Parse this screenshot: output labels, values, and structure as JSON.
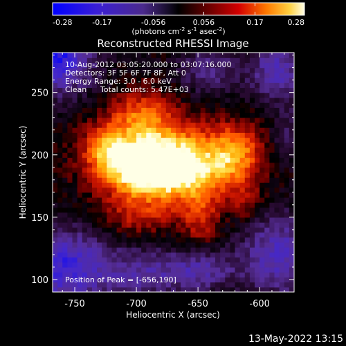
{
  "colorbar": {
    "ticks": [
      "-0.28",
      "-0.17",
      "-0.056",
      "0.056",
      "0.17",
      "0.28"
    ],
    "tick_values": [
      -0.28,
      -0.17,
      -0.056,
      0.056,
      0.17,
      0.28
    ],
    "range": [
      -0.28,
      0.28
    ],
    "unit_label": "(photons cm",
    "unit_sup1": "-2",
    "unit_mid1": " s",
    "unit_sup2": "-1",
    "unit_mid2": " asec",
    "unit_sup3": "-2",
    "unit_end": ")"
  },
  "title": "Reconstructed RHESSI Image",
  "annotations": {
    "time_range": "10-Aug-2012 03:05:20.000 to 03:07:16.000",
    "detectors": "Detectors: 3F 5F 6F 7F 8F, Att 0",
    "energy_range": "Energy Range: 3.0 - 6.0 keV",
    "algorithm": "Clean",
    "total_counts": "Total counts: 5.47E+03",
    "peak_position": "Position of Peak = [-656,190]"
  },
  "axes": {
    "xlabel": "Heliocentric X (arcsec)",
    "ylabel": "Heliocentric Y (arcsec)",
    "xticks": [
      "-750",
      "-700",
      "-650",
      "-600"
    ],
    "yticks": [
      "100",
      "150",
      "200",
      "250"
    ],
    "x_tick_values": [
      -750,
      -700,
      -650,
      -600
    ],
    "y_tick_values": [
      100,
      150,
      200,
      250
    ],
    "xlim": [
      -768,
      -572
    ],
    "ylim": [
      90,
      282
    ]
  },
  "map": {
    "peak_x": -656,
    "peak_y": 190
  },
  "footer": {
    "timestamp": "13-May-2022 13:15"
  },
  "colors": {
    "background": "#000000",
    "text": "#ffffff",
    "colormap": [
      "#0000ff",
      "#3a1fd0",
      "#5b30a6",
      "#1a0010",
      "#000000",
      "#5a0000",
      "#b00000",
      "#ff3000",
      "#ff9a00",
      "#ffe070",
      "#ffffff"
    ]
  }
}
